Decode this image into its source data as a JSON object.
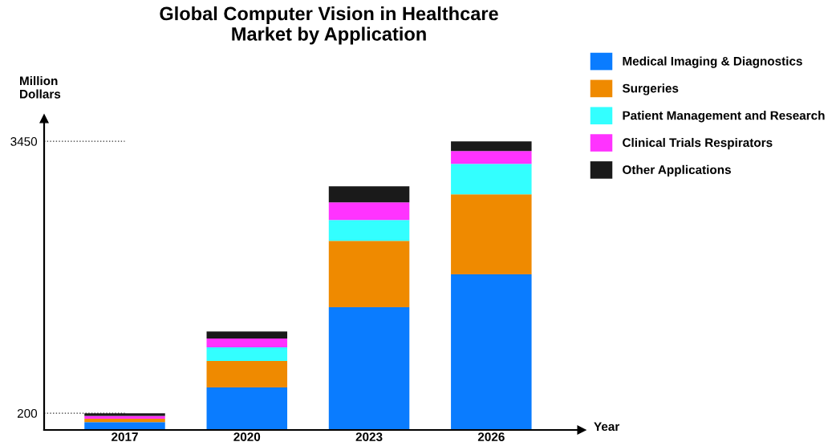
{
  "chart_data": {
    "type": "bar",
    "stacked": true,
    "title": "Global Computer Vision in Healthcare\nMarket by Application",
    "ylabel": "Million\nDollars",
    "xlabel": "Year",
    "categories": [
      "2017",
      "2020",
      "2023",
      "2026"
    ],
    "series": [
      {
        "name": "Medical Imaging & Diagnostics",
        "color": "#0a7cff",
        "values": [
          93,
          508,
          1466,
          1859
        ]
      },
      {
        "name": "Surgeries",
        "color": "#ef8a00",
        "values": [
          42,
          316,
          795,
          958
        ]
      },
      {
        "name": "Patient Management and Research",
        "color": "#33ffff",
        "values": [
          0,
          163,
          249,
          364
        ]
      },
      {
        "name": "Clinical Trials Respirators",
        "color": "#ff33ff",
        "values": [
          33,
          105,
          211,
          153
        ]
      },
      {
        "name": "Other Applications",
        "color": "#1a1a1a",
        "values": [
          32,
          86,
          192,
          116
        ]
      }
    ],
    "ylim": [
      0,
      3720
    ],
    "yticks": [
      200,
      3450
    ],
    "ref_lines": [
      {
        "axis": "y",
        "value": 200,
        "line_style": "dotted",
        "color": "#333333"
      },
      {
        "axis": "y",
        "value": 3450,
        "line_style": "dotted",
        "color": "#333333"
      }
    ],
    "legend": "right",
    "grid": false
  }
}
